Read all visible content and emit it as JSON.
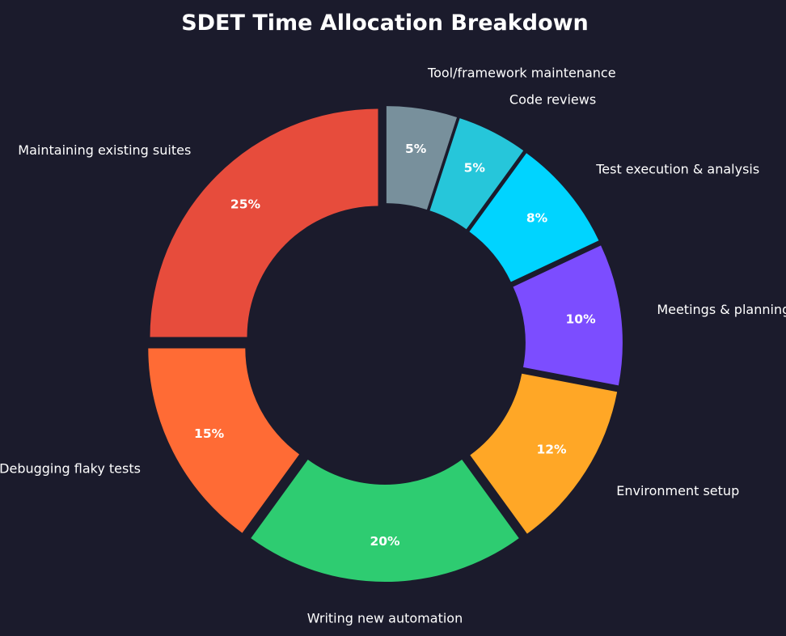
{
  "chart_data": {
    "type": "pie",
    "variant": "donut",
    "title": "SDET Time Allocation Breakdown",
    "unit": "%",
    "start_angle_deg": 90,
    "direction": "counterclockwise",
    "exploded": true,
    "background_color": "#1b1b2c",
    "slices": [
      {
        "label": "Maintaining existing suites",
        "value": 25,
        "value_label": "25%",
        "color": "#e74c3c"
      },
      {
        "label": "Debugging flaky tests",
        "value": 15,
        "value_label": "15%",
        "color": "#ff6b35"
      },
      {
        "label": "Writing new automation",
        "value": 20,
        "value_label": "20%",
        "color": "#2ecc71"
      },
      {
        "label": "Environment setup",
        "value": 12,
        "value_label": "12%",
        "color": "#ffa726"
      },
      {
        "label": "Meetings & planning",
        "value": 10,
        "value_label": "10%",
        "color": "#7c4dff"
      },
      {
        "label": "Test execution & analysis",
        "value": 8,
        "value_label": "8%",
        "color": "#00d4ff"
      },
      {
        "label": "Code reviews",
        "value": 5,
        "value_label": "5%",
        "color": "#26c6da"
      },
      {
        "label": "Tool/framework maintenance",
        "value": 5,
        "value_label": "5%",
        "color": "#78909c"
      }
    ]
  }
}
